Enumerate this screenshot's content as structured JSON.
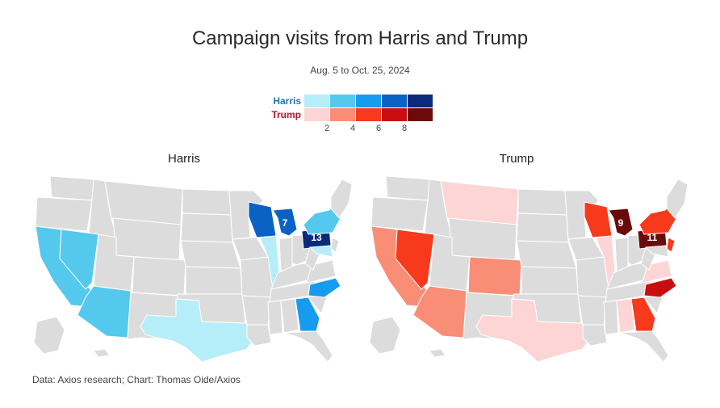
{
  "title": "Campaign visits from Harris and Trump",
  "subtitle": "Aug. 5 to Oct. 25, 2024",
  "legend": {
    "harris_label": "Harris",
    "trump_label": "Trump",
    "harris_colors": [
      "#b5eef8",
      "#55c8ee",
      "#169cee",
      "#0a62c4",
      "#0a2a7c"
    ],
    "trump_colors": [
      "#fdd5d5",
      "#f98d75",
      "#f83a1c",
      "#c80e0e",
      "#6b0a0a"
    ],
    "ticks": [
      "2",
      "4",
      "6",
      "8"
    ]
  },
  "maps": {
    "harris": {
      "title": "Harris",
      "states": [
        {
          "state": "California",
          "color": "#55c8ee"
        },
        {
          "state": "Nevada",
          "color": "#55c8ee"
        },
        {
          "state": "Arizona",
          "color": "#55c8ee"
        },
        {
          "state": "Texas",
          "color": "#b5eef8"
        },
        {
          "state": "Wisconsin",
          "color": "#0a62c4"
        },
        {
          "state": "Michigan",
          "color": "#0a62c4",
          "label": "7"
        },
        {
          "state": "Illinois",
          "color": "#b5eef8"
        },
        {
          "state": "Pennsylvania",
          "color": "#0a2a7c",
          "label": "13"
        },
        {
          "state": "New York",
          "color": "#55c8ee"
        },
        {
          "state": "Maryland",
          "color": "#b5eef8"
        },
        {
          "state": "North Carolina",
          "color": "#169cee"
        },
        {
          "state": "Georgia",
          "color": "#169cee"
        }
      ]
    },
    "trump": {
      "title": "Trump",
      "states": [
        {
          "state": "California",
          "color": "#f98d75"
        },
        {
          "state": "Nevada",
          "color": "#f83a1c"
        },
        {
          "state": "Arizona",
          "color": "#f98d75"
        },
        {
          "state": "Montana",
          "color": "#fdd5d5"
        },
        {
          "state": "Colorado",
          "color": "#f98d75"
        },
        {
          "state": "Texas",
          "color": "#fdd5d5"
        },
        {
          "state": "Wisconsin",
          "color": "#f83a1c"
        },
        {
          "state": "Michigan",
          "color": "#6b0a0a",
          "label": "9"
        },
        {
          "state": "Illinois",
          "color": "#fdd5d5"
        },
        {
          "state": "Pennsylvania",
          "color": "#6b0a0a",
          "label": "11"
        },
        {
          "state": "New York",
          "color": "#f83a1c"
        },
        {
          "state": "New Jersey",
          "color": "#f83a1c"
        },
        {
          "state": "Virginia",
          "color": "#fdd5d5"
        },
        {
          "state": "North Carolina",
          "color": "#c80e0e"
        },
        {
          "state": "Georgia",
          "color": "#f83a1c"
        },
        {
          "state": "Alabama",
          "color": "#fdd5d5"
        }
      ]
    }
  },
  "source": "Data: Axios research; Chart: Thomas Oide/Axios"
}
